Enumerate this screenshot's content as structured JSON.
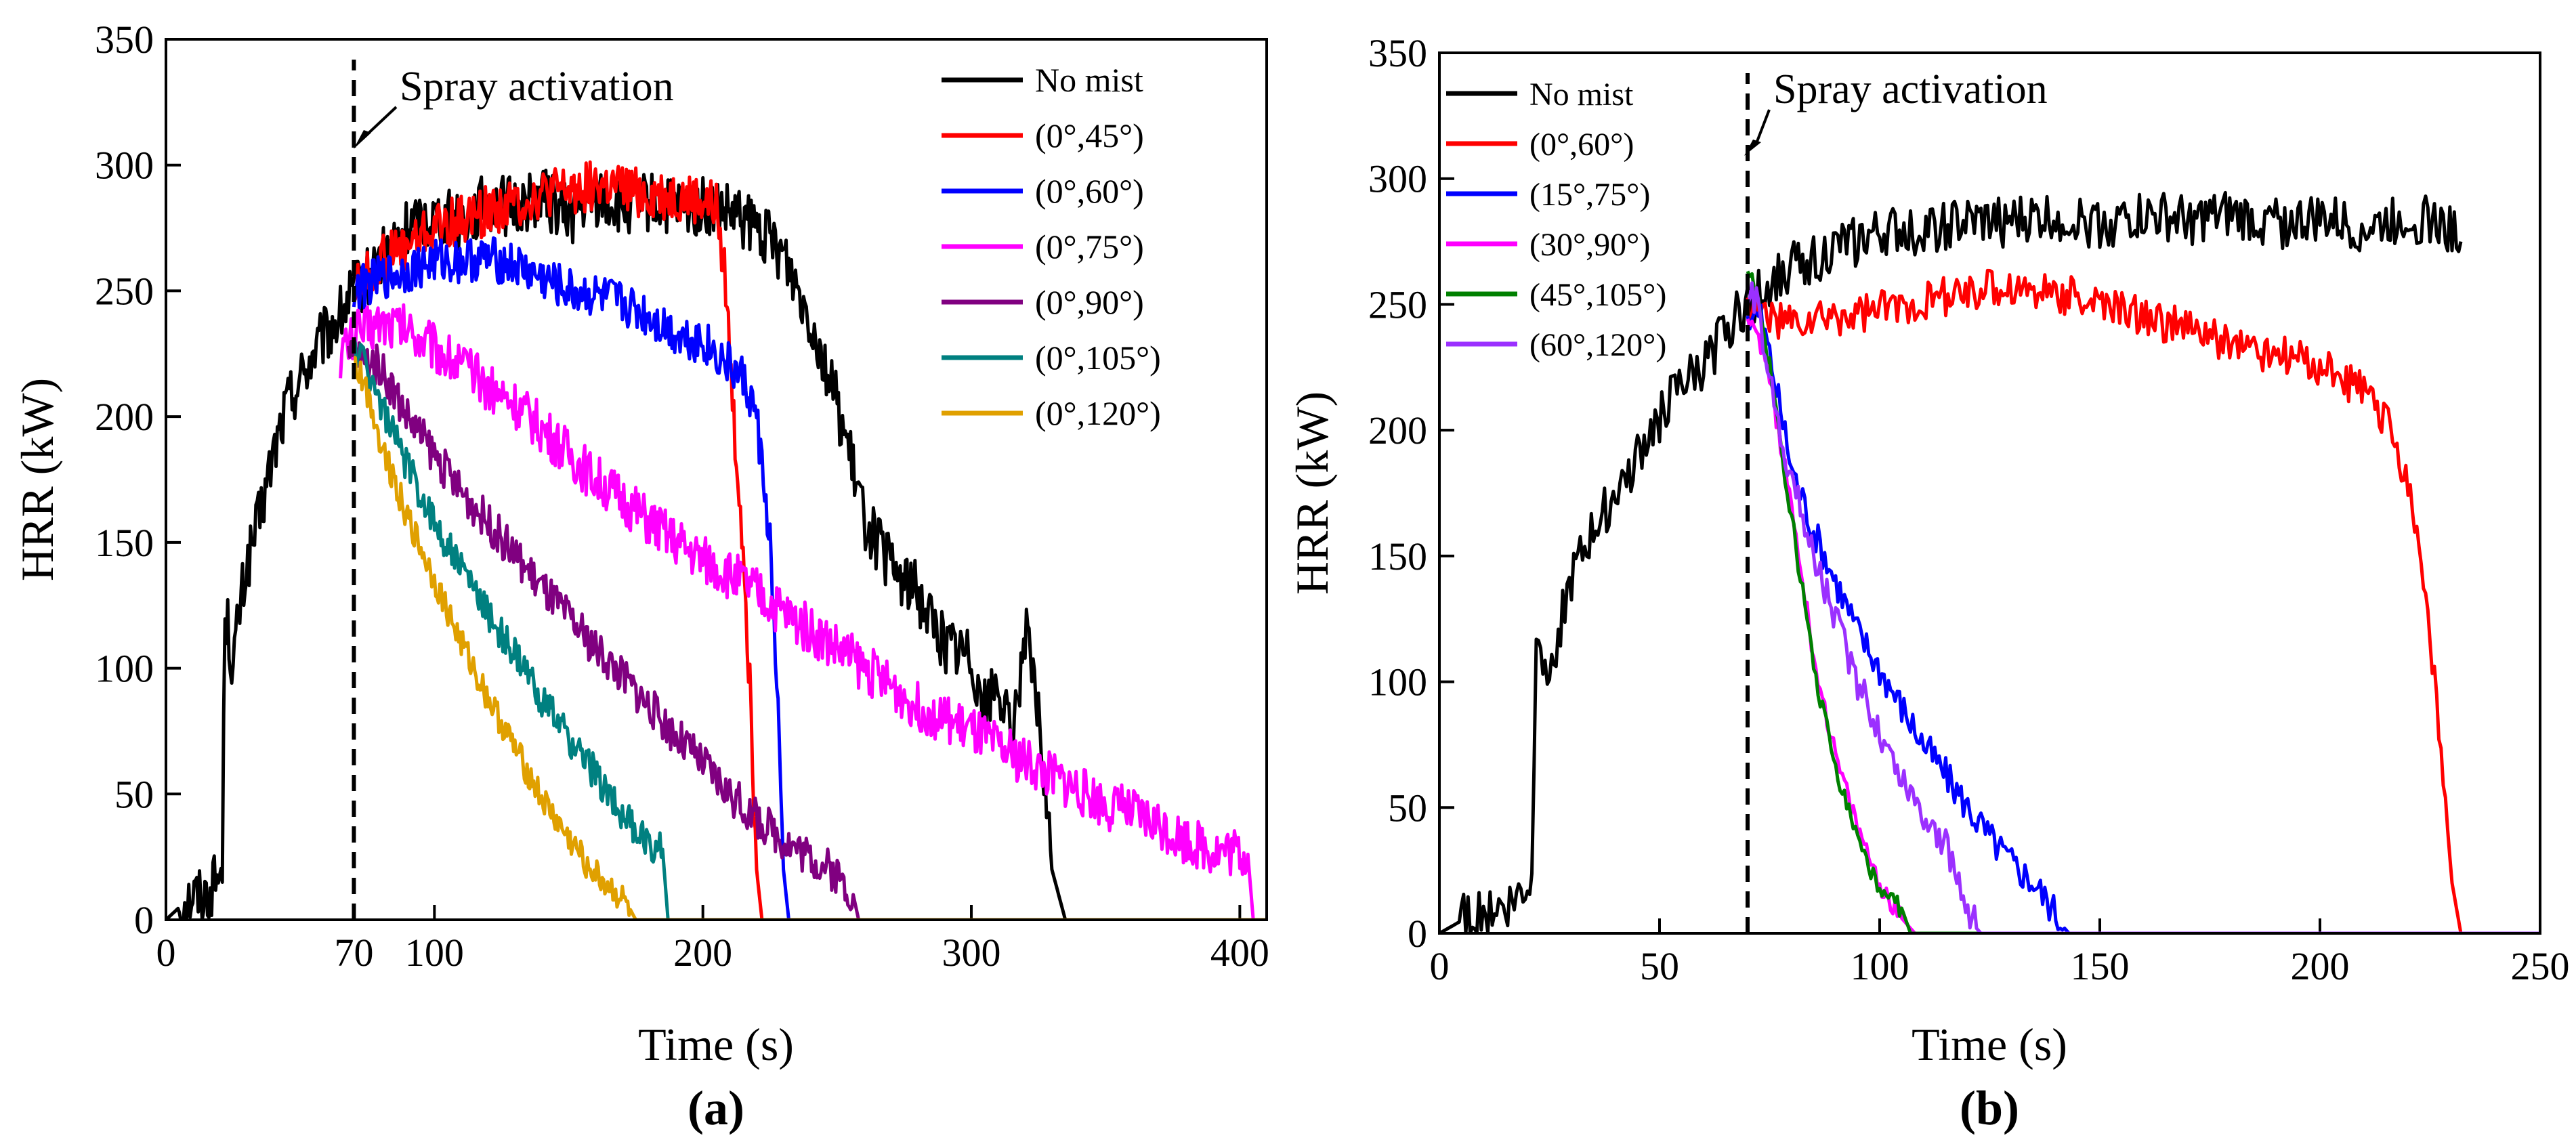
{
  "chart_data": [
    {
      "type": "line",
      "panel_label": "(a)",
      "xlabel": "Time (s)",
      "ylabel": "HRR (kW)",
      "xlim": [
        0,
        410
      ],
      "ylim": [
        0,
        350
      ],
      "xticks": [
        0,
        70,
        100,
        200,
        300,
        400
      ],
      "yticks": [
        0,
        50,
        100,
        150,
        200,
        250,
        300,
        350
      ],
      "annotation": {
        "text": "Spray activation",
        "x": 70
      },
      "legend": "top-right",
      "series": [
        {
          "name": "No mist",
          "color": "#000000",
          "noise": 12,
          "x": [
            0,
            5,
            10,
            15,
            20,
            21,
            22,
            25,
            27,
            30,
            35,
            40,
            45,
            50,
            55,
            60,
            65,
            70,
            75,
            80,
            90,
            100,
            110,
            120,
            130,
            140,
            150,
            160,
            170,
            180,
            190,
            200,
            210,
            220,
            230,
            240,
            250,
            260,
            270,
            280,
            290,
            300,
            305,
            310,
            315,
            320,
            325,
            330,
            335,
            410
          ],
          "y": [
            0,
            5,
            10,
            10,
            18,
            20,
            125,
            100,
            120,
            140,
            160,
            185,
            205,
            215,
            225,
            233,
            240,
            250,
            255,
            262,
            275,
            280,
            278,
            285,
            283,
            288,
            280,
            287,
            283,
            285,
            282,
            283,
            280,
            275,
            265,
            240,
            205,
            160,
            140,
            130,
            110,
            105,
            85,
            95,
            70,
            115,
            80,
            20,
            0,
            0
          ]
        },
        {
          "name": "(0°,45°)",
          "color": "#ff0000",
          "noise": 10,
          "x": [
            70,
            80,
            90,
            100,
            110,
            120,
            130,
            140,
            150,
            160,
            170,
            180,
            190,
            200,
            205,
            208,
            212,
            215,
            218,
            220,
            222,
            400
          ],
          "y": [
            250,
            262,
            268,
            275,
            278,
            282,
            285,
            288,
            290,
            292,
            290,
            288,
            287,
            285,
            283,
            260,
            190,
            150,
            80,
            20,
            0,
            0
          ]
        },
        {
          "name": "(0°,60°)",
          "color": "#0000ff",
          "noise": 9,
          "x": [
            70,
            80,
            90,
            100,
            110,
            120,
            130,
            140,
            150,
            160,
            170,
            180,
            190,
            200,
            210,
            215,
            220,
            225,
            228,
            230,
            232,
            400
          ],
          "y": [
            250,
            255,
            258,
            262,
            262,
            263,
            260,
            255,
            250,
            248,
            245,
            240,
            233,
            230,
            220,
            215,
            200,
            150,
            80,
            20,
            0,
            0
          ]
        },
        {
          "name": "(0°,75°)",
          "color": "#ff00ff",
          "noise": 10,
          "x": [
            65,
            70,
            80,
            90,
            100,
            110,
            120,
            130,
            140,
            150,
            160,
            170,
            180,
            190,
            200,
            210,
            220,
            230,
            240,
            250,
            260,
            270,
            280,
            290,
            300,
            310,
            320,
            330,
            340,
            350,
            360,
            370,
            380,
            390,
            400,
            403,
            405,
            410
          ],
          "y": [
            225,
            232,
            238,
            235,
            228,
            220,
            212,
            205,
            195,
            185,
            175,
            167,
            158,
            150,
            143,
            137,
            130,
            122,
            115,
            108,
            100,
            93,
            85,
            80,
            75,
            68,
            63,
            57,
            52,
            46,
            42,
            38,
            32,
            28,
            27,
            26,
            0,
            0
          ]
        },
        {
          "name": "(0°,90°)",
          "color": "#800080",
          "noise": 8,
          "x": [
            68,
            70,
            80,
            90,
            100,
            110,
            120,
            130,
            140,
            150,
            160,
            170,
            180,
            190,
            200,
            210,
            220,
            230,
            240,
            250,
            256,
            258,
            410
          ],
          "y": [
            222,
            225,
            220,
            200,
            185,
            170,
            158,
            145,
            132,
            120,
            108,
            97,
            85,
            73,
            62,
            50,
            40,
            32,
            25,
            18,
            10,
            0,
            0
          ]
        },
        {
          "name": "(0°,105°)",
          "color": "#008080",
          "noise": 7,
          "x": [
            70,
            75,
            80,
            90,
            100,
            110,
            120,
            130,
            140,
            150,
            160,
            170,
            175,
            180,
            185,
            187,
            410
          ],
          "y": [
            228,
            220,
            205,
            180,
            158,
            140,
            122,
            105,
            88,
            72,
            58,
            42,
            35,
            30,
            28,
            0,
            0
          ]
        },
        {
          "name": "(0°,120°)",
          "color": "#e0a000",
          "noise": 6,
          "x": [
            70,
            75,
            80,
            90,
            100,
            110,
            120,
            130,
            140,
            150,
            160,
            170,
            173,
            175,
            410
          ],
          "y": [
            222,
            210,
            190,
            160,
            135,
            110,
            88,
            68,
            48,
            32,
            18,
            8,
            4,
            0,
            0
          ]
        }
      ]
    },
    {
      "type": "line",
      "panel_label": "(b)",
      "xlabel": "Time (s)",
      "ylabel": "HRR (kW)",
      "xlim": [
        0,
        250
      ],
      "ylim": [
        0,
        350
      ],
      "xticks": [
        0,
        50,
        100,
        150,
        200,
        250
      ],
      "yticks": [
        0,
        50,
        100,
        150,
        200,
        250,
        300,
        350
      ],
      "annotation": {
        "text": "Spray activation",
        "x": 70
      },
      "legend": "top-left",
      "series": [
        {
          "name": "No mist",
          "color": "#000000",
          "noise": 10,
          "x": [
            0,
            5,
            10,
            15,
            20,
            21,
            22,
            25,
            27,
            30,
            35,
            40,
            45,
            50,
            55,
            60,
            65,
            70,
            75,
            80,
            90,
            100,
            110,
            120,
            130,
            140,
            150,
            160,
            170,
            180,
            190,
            200,
            210,
            220,
            225,
            230,
            232
          ],
          "y": [
            0,
            5,
            10,
            10,
            18,
            20,
            125,
            100,
            120,
            140,
            160,
            175,
            190,
            205,
            218,
            225,
            240,
            250,
            258,
            265,
            272,
            278,
            280,
            282,
            283,
            285,
            282,
            285,
            283,
            285,
            282,
            284,
            280,
            285,
            283,
            280,
            275
          ]
        },
        {
          "name": "(0°,60°)",
          "color": "#ff0000",
          "noise": 8,
          "x": [
            70,
            75,
            80,
            90,
            100,
            110,
            120,
            130,
            140,
            150,
            160,
            170,
            180,
            190,
            200,
            210,
            215,
            220,
            222,
            225,
            228,
            230,
            232,
            250
          ],
          "y": [
            250,
            245,
            242,
            245,
            248,
            252,
            255,
            257,
            255,
            250,
            245,
            240,
            235,
            230,
            225,
            215,
            205,
            180,
            160,
            120,
            60,
            20,
            0,
            0
          ]
        },
        {
          "name": "(15°,75°)",
          "color": "#0000ff",
          "noise": 7,
          "x": [
            70,
            73,
            75,
            80,
            85,
            90,
            95,
            100,
            105,
            110,
            115,
            120,
            125,
            130,
            135,
            140,
            142,
            143,
            250
          ],
          "y": [
            245,
            245,
            230,
            185,
            160,
            140,
            120,
            105,
            90,
            75,
            63,
            50,
            38,
            28,
            20,
            8,
            2,
            0,
            0
          ]
        },
        {
          "name": "(30°,90°)",
          "color": "#ff00ff",
          "noise": 4,
          "x": [
            70,
            72,
            75,
            80,
            85,
            90,
            95,
            100,
            103,
            105,
            108,
            250
          ],
          "y": [
            245,
            240,
            220,
            170,
            110,
            70,
            42,
            20,
            10,
            6,
            0,
            0
          ]
        },
        {
          "name": "(45°,105°)",
          "color": "#008000",
          "noise": 4,
          "x": [
            70,
            72,
            75,
            80,
            85,
            90,
            95,
            100,
            103,
            105,
            107,
            250
          ],
          "y": [
            265,
            255,
            225,
            165,
            105,
            65,
            38,
            15,
            12,
            10,
            0,
            0
          ]
        },
        {
          "name": "(60°,120°)",
          "color": "#9b30ff",
          "noise": 7,
          "x": [
            70,
            72,
            75,
            80,
            85,
            90,
            95,
            100,
            105,
            110,
            115,
            118,
            120,
            122,
            123,
            250
          ],
          "y": [
            255,
            250,
            220,
            180,
            150,
            125,
            100,
            80,
            62,
            48,
            35,
            20,
            10,
            2,
            0,
            0
          ]
        }
      ]
    }
  ]
}
